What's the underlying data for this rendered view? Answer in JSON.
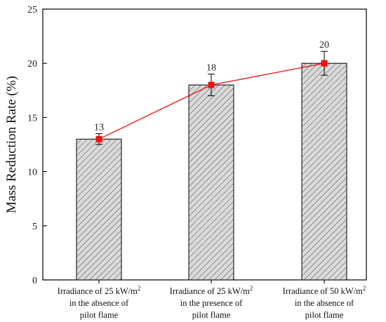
{
  "chart_data": {
    "type": "bar",
    "title": "",
    "xlabel": "",
    "ylabel": "Mass Reduction Rate (%)",
    "ylim": [
      0,
      25
    ],
    "yticks": [
      0,
      5,
      10,
      15,
      20,
      25
    ],
    "grid": false,
    "categories": [
      {
        "lines": [
          {
            "text": "Irradiance of 25 kW/m",
            "sup": "2"
          },
          {
            "text": "in the absence of",
            "sup": ""
          },
          {
            "text": "pilot flame",
            "sup": ""
          }
        ]
      },
      {
        "lines": [
          {
            "text": "Irradiance of 25 kW/m",
            "sup": "2"
          },
          {
            "text": "in the presence of",
            "sup": ""
          },
          {
            "text": "pilot flame",
            "sup": ""
          }
        ]
      },
      {
        "lines": [
          {
            "text": "Irradiance of 50 kW/m",
            "sup": "2"
          },
          {
            "text": "in the absence of",
            "sup": ""
          },
          {
            "text": "pilot flame",
            "sup": ""
          }
        ]
      }
    ],
    "values": [
      13,
      18,
      20
    ],
    "errors": [
      0.5,
      1.0,
      1.1
    ],
    "data_labels": [
      "13",
      "18",
      "20"
    ],
    "bar_style": "diagonal-hatch",
    "bar_fill": "#d9d9d9",
    "hatch_color": "#555555",
    "line_color": "#ee1111",
    "marker_color": "#ee1111"
  }
}
